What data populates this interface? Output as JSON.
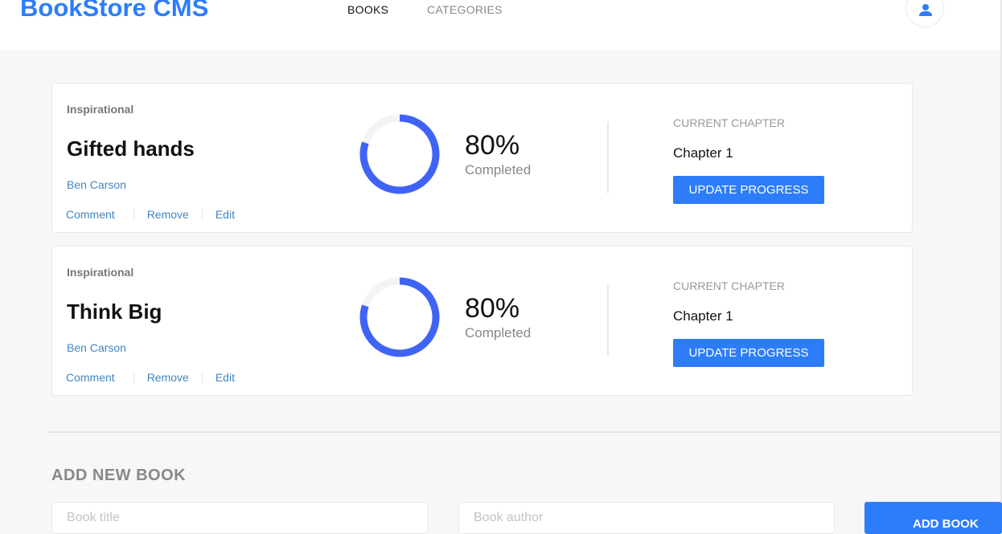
{
  "header": {
    "logo": "BookStore CMS",
    "nav": [
      {
        "label": "BOOKS",
        "active": true
      },
      {
        "label": "CATEGORIES",
        "active": false
      }
    ],
    "user_icon": "user-icon"
  },
  "books": [
    {
      "genre": "Inspirational",
      "title": "Gifted hands",
      "author": "Ben Carson",
      "actions": [
        "Comment",
        "Remove",
        "Edit"
      ],
      "progress": 80,
      "percent_label": "80%",
      "completed_label": "Completed",
      "current_chapter_label": "CURRENT CHAPTER",
      "chapter": "Chapter 1",
      "update_label": "UPDATE PROGRESS"
    },
    {
      "genre": "Inspirational",
      "title": "Think Big",
      "author": "Ben Carson",
      "actions": [
        "Comment",
        "Remove",
        "Edit"
      ],
      "progress": 80,
      "percent_label": "80%",
      "completed_label": "Completed",
      "current_chapter_label": "CURRENT CHAPTER",
      "chapter": "Chapter 1",
      "update_label": "UPDATE PROGRESS"
    }
  ],
  "add_form": {
    "heading": "ADD NEW BOOK",
    "title_placeholder": "Book title",
    "author_placeholder": "Book author",
    "submit_label": "ADD BOOK"
  },
  "colors": {
    "accent": "#2d7dfa",
    "ring": "#3f64f5",
    "link": "#4386bf"
  }
}
